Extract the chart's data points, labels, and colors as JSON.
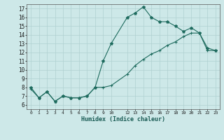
{
  "xlabel": "Humidex (Indice chaleur)",
  "background_color": "#cde8e8",
  "grid_color": "#b0d0d0",
  "line_color": "#1e6b5e",
  "xlim": [
    -0.5,
    23.5
  ],
  "ylim": [
    5.5,
    17.5
  ],
  "xticks": [
    0,
    1,
    2,
    3,
    4,
    5,
    6,
    7,
    8,
    9,
    10,
    12,
    13,
    14,
    15,
    16,
    17,
    18,
    19,
    20,
    21,
    22,
    23
  ],
  "yticks": [
    6,
    7,
    8,
    9,
    10,
    11,
    12,
    13,
    14,
    15,
    16,
    17
  ],
  "line1_x": [
    0,
    1,
    2,
    3,
    4,
    5,
    6,
    7,
    8,
    9,
    10,
    12,
    13,
    14,
    15,
    16,
    17,
    18,
    19,
    20,
    21,
    22,
    23
  ],
  "line1_y": [
    8.0,
    6.8,
    7.5,
    6.4,
    7.0,
    6.8,
    6.8,
    7.0,
    8.0,
    11.0,
    13.0,
    16.0,
    16.5,
    17.2,
    16.0,
    15.5,
    15.5,
    15.0,
    14.4,
    14.8,
    14.2,
    12.5,
    12.2
  ],
  "line2_x": [
    0,
    1,
    2,
    3,
    4,
    5,
    6,
    7,
    8,
    9,
    10,
    12,
    13,
    14,
    15,
    16,
    17,
    18,
    19,
    20,
    21,
    22,
    23
  ],
  "line2_y": [
    7.8,
    6.8,
    7.5,
    6.4,
    7.0,
    6.8,
    6.8,
    7.0,
    8.0,
    8.0,
    8.2,
    9.5,
    10.5,
    11.2,
    11.8,
    12.2,
    12.8,
    13.2,
    13.8,
    14.2,
    14.2,
    12.2,
    12.2
  ]
}
